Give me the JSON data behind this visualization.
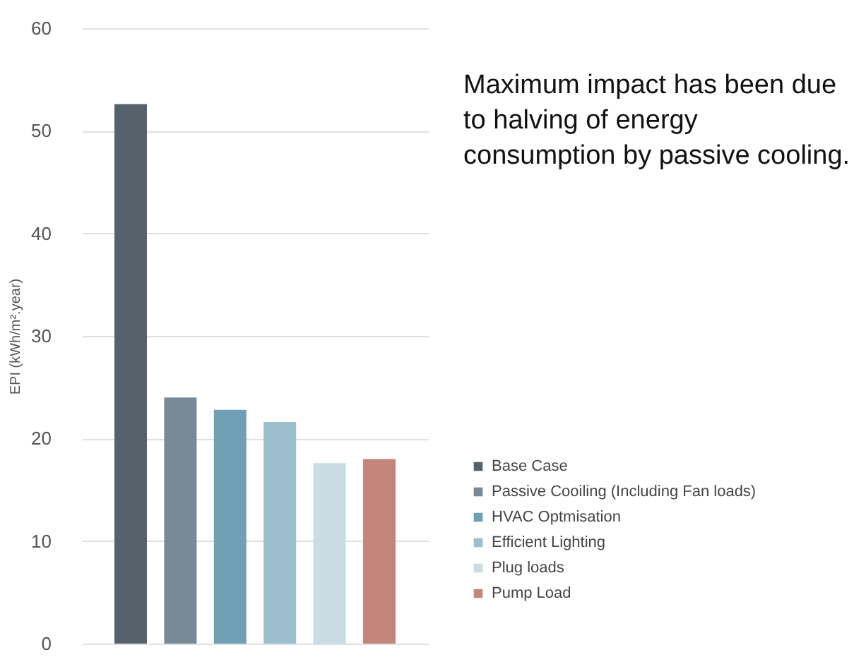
{
  "chart_data": {
    "type": "bar",
    "ylabel": "EPI (kWh/m².year)",
    "categories": [
      null
    ],
    "series": [
      {
        "name": "Base Case",
        "color": "#56626b",
        "values": [
          52.6
        ]
      },
      {
        "name": "Passive Cooiling (Including Fan loads)",
        "color": "#798a96",
        "values": [
          24.0
        ]
      },
      {
        "name": "HVAC Optmisation",
        "color": "#6fa0b5",
        "values": [
          22.8
        ]
      },
      {
        "name": "Efficient Lighting",
        "color": "#9dbfcd",
        "values": [
          21.6
        ]
      },
      {
        "name": "Plug loads",
        "color": "#c9dce4",
        "values": [
          17.6
        ]
      },
      {
        "name": "Pump Load",
        "color": "#c4857b",
        "values": [
          18.0
        ]
      }
    ],
    "ylim": [
      0,
      60
    ],
    "yticks": [
      0,
      10,
      20,
      30,
      40,
      50,
      60
    ],
    "grid": "y",
    "legend": "bottom right",
    "annotations": [
      "Maximum impact has been due to halving of energy consumption by passive cooling."
    ]
  }
}
